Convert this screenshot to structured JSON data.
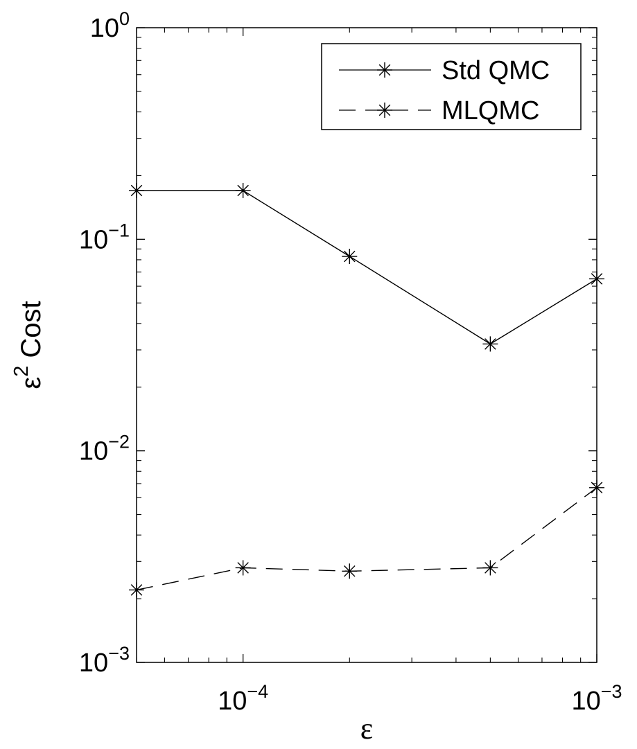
{
  "chart_data": {
    "type": "line",
    "xscale": "log",
    "yscale": "log",
    "xlim": [
      5e-05,
      0.001
    ],
    "ylim": [
      0.001,
      1
    ],
    "x": [
      5e-05,
      0.0001,
      0.0002,
      0.0005,
      0.001
    ],
    "series": [
      {
        "name": "Std QMC",
        "values": [
          0.17,
          0.17,
          0.083,
          0.032,
          0.065
        ],
        "line_style": "solid",
        "marker": "asterisk"
      },
      {
        "name": "MLQMC",
        "values": [
          0.0022,
          0.0028,
          0.0027,
          0.0028,
          0.0067
        ],
        "line_style": "dashed",
        "marker": "asterisk"
      }
    ],
    "x_ticks": [
      {
        "value": 0.0001,
        "base": "10",
        "exp": "−4"
      },
      {
        "value": 0.001,
        "base": "10",
        "exp": "−3"
      }
    ],
    "y_ticks": [
      {
        "value": 0.001,
        "base": "10",
        "exp": "−3"
      },
      {
        "value": 0.01,
        "base": "10",
        "exp": "−2"
      },
      {
        "value": 0.1,
        "base": "10",
        "exp": "−1"
      },
      {
        "value": 1,
        "base": "10",
        "exp": "0"
      }
    ],
    "xlabel": "ε",
    "ylabel": {
      "base": "ε",
      "exp": "2",
      "rest": " Cost"
    },
    "legend": {
      "placement": "top-right"
    },
    "grid": false,
    "colors": {
      "line": "#000000",
      "background": "#ffffff"
    }
  }
}
